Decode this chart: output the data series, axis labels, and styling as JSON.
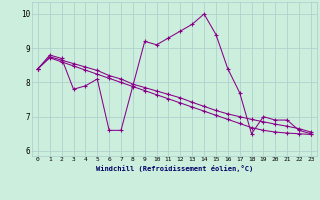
{
  "xlabel": "Windchill (Refroidissement éolien,°C)",
  "bg_color": "#cceedd",
  "line_color": "#880088",
  "grid_color": "#aacccc",
  "hours": [
    0,
    1,
    2,
    3,
    4,
    5,
    6,
    7,
    8,
    9,
    10,
    11,
    12,
    13,
    14,
    15,
    16,
    17,
    18,
    19,
    20,
    21,
    22,
    23
  ],
  "line1": [
    8.4,
    8.8,
    8.7,
    7.8,
    7.9,
    8.1,
    6.6,
    6.6,
    7.9,
    9.2,
    9.1,
    9.3,
    9.5,
    9.7,
    10.0,
    9.4,
    8.4,
    7.7,
    6.5,
    7.0,
    6.9,
    6.9,
    6.6,
    6.5
  ],
  "line2": [
    8.4,
    8.75,
    8.65,
    8.55,
    8.45,
    8.35,
    8.2,
    8.1,
    7.95,
    7.85,
    7.75,
    7.65,
    7.55,
    7.42,
    7.3,
    7.18,
    7.08,
    7.0,
    6.92,
    6.85,
    6.78,
    6.72,
    6.65,
    6.55
  ],
  "line3": [
    8.4,
    8.72,
    8.6,
    8.48,
    8.36,
    8.24,
    8.12,
    8.0,
    7.88,
    7.76,
    7.64,
    7.52,
    7.4,
    7.28,
    7.16,
    7.04,
    6.92,
    6.8,
    6.68,
    6.6,
    6.55,
    6.52,
    6.5,
    6.48
  ],
  "ylim": [
    5.85,
    10.35
  ],
  "xlim": [
    -0.5,
    23.5
  ],
  "yticks": [
    6,
    7,
    8,
    9,
    10
  ]
}
